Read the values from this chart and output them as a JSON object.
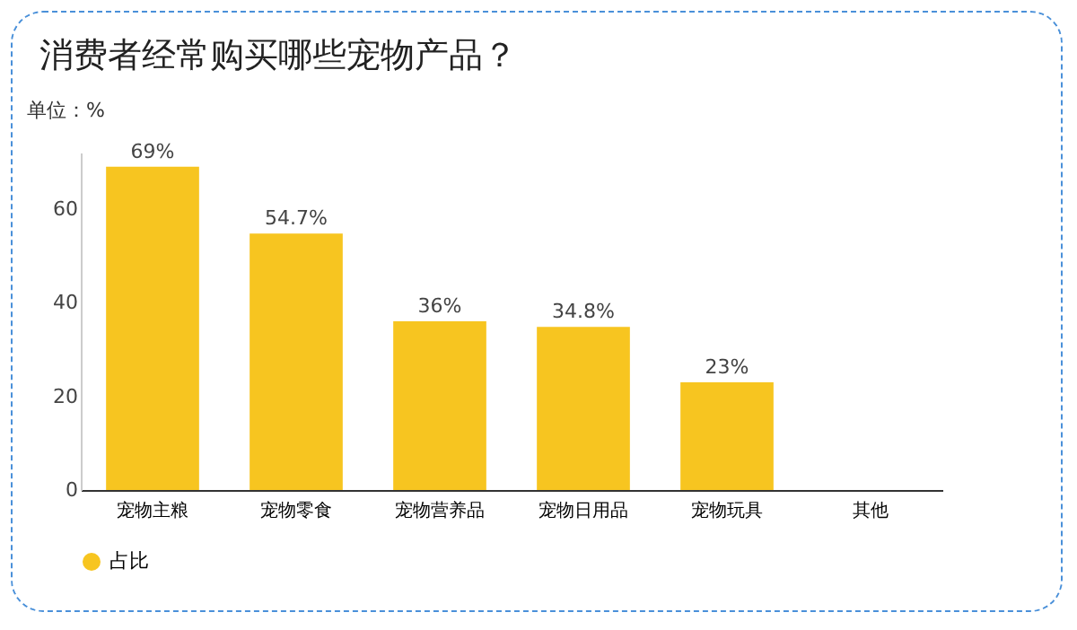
{
  "chart_data": {
    "type": "bar",
    "title": "消费者经常购买哪些宠物产品？",
    "ylabel": "单位：%",
    "categories": [
      "宠物主粮",
      "宠物零食",
      "宠物营养品",
      "宠物日用品",
      "宠物玩具",
      "其他"
    ],
    "series": [
      {
        "name": "占比",
        "color": "#f7c520",
        "values": [
          69,
          54.7,
          36,
          34.8,
          23,
          null
        ]
      }
    ],
    "ylim": [
      0,
      72
    ],
    "yticks": [
      0,
      20,
      40,
      60
    ],
    "grid": false,
    "legend": "bottom",
    "value_labels": [
      "69%",
      "54.7%",
      "36%",
      "34.8%",
      "23%",
      null
    ]
  }
}
